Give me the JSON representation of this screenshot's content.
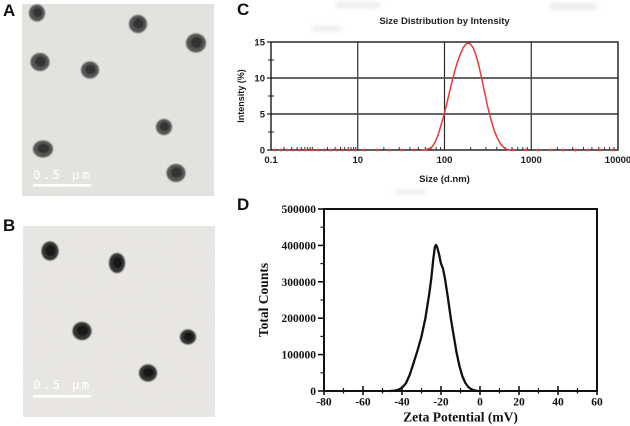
{
  "panels": {
    "a": {
      "label": "A",
      "scale_bar_text": "0.5 μm",
      "bg_color": "#e7e6e2",
      "particle_color": "#454545",
      "core_color": "#262626",
      "particles": [
        [
          15,
          9,
          8,
          8.5
        ],
        [
          116,
          20,
          9,
          9
        ],
        [
          174,
          39,
          10,
          9.5
        ],
        [
          18,
          58,
          9.5,
          9
        ],
        [
          68,
          66,
          9,
          8.5
        ],
        [
          142,
          123,
          8,
          8
        ],
        [
          21,
          145,
          10,
          8.5
        ],
        [
          154,
          169,
          9.5,
          9
        ]
      ]
    },
    "b": {
      "label": "B",
      "scale_bar_text": "0.5 μm",
      "bg_color": "#eceae7",
      "particle_color": "#202020",
      "core_color": "#0a0a0a",
      "particles": [
        [
          27,
          25,
          8.5,
          9.5
        ],
        [
          94,
          37,
          8,
          10
        ],
        [
          59,
          105,
          9.5,
          9
        ],
        [
          165,
          111,
          8,
          7.5
        ],
        [
          125,
          147,
          9,
          8.5
        ]
      ]
    },
    "c": {
      "label": "C"
    },
    "d": {
      "label": "D"
    }
  },
  "chart_data": [
    {
      "id": "size_distribution",
      "type": "line",
      "title": "Size Distribution by Intensity",
      "xlabel": "Size (d.nm)",
      "ylabel": "Intensity (%)",
      "x_scale": "log",
      "x_tick_values": [
        0.1,
        10,
        100,
        1000,
        10000
      ],
      "x_tick_labels": [
        "0.1",
        "10",
        "100",
        "1000",
        "10000"
      ],
      "grid_x_values": [
        10,
        100,
        1000
      ],
      "grid_y_values": [
        5,
        10
      ],
      "ylim": [
        0,
        15
      ],
      "y_ticks": [
        0,
        5,
        10,
        15
      ],
      "y_minor_ticks": [
        2.5,
        7.5,
        12.5
      ],
      "line_color": "#e43b3b",
      "peak": {
        "x_nm": 180,
        "intensity_pct": 14.8
      },
      "series": [
        {
          "name": "Intensity",
          "points": [
            [
              55,
              0
            ],
            [
              60,
              0.05
            ],
            [
              66,
              0.15
            ],
            [
              72,
              0.45
            ],
            [
              78,
              1.1
            ],
            [
              84,
              2.0
            ],
            [
              90,
              3.2
            ],
            [
              96,
              4.4
            ],
            [
              100,
              5.2
            ],
            [
              106,
              6.4
            ],
            [
              113,
              7.8
            ],
            [
              121,
              9.3
            ],
            [
              130,
              10.8
            ],
            [
              140,
              12.1
            ],
            [
              152,
              13.3
            ],
            [
              164,
              14.2
            ],
            [
              176,
              14.7
            ],
            [
              188,
              14.85
            ],
            [
              200,
              14.7
            ],
            [
              214,
              14.2
            ],
            [
              230,
              13.2
            ],
            [
              248,
              11.8
            ],
            [
              268,
              10.0
            ],
            [
              290,
              8.0
            ],
            [
              315,
              6.0
            ],
            [
              342,
              4.3
            ],
            [
              372,
              2.8
            ],
            [
              405,
              1.7
            ],
            [
              440,
              0.9
            ],
            [
              478,
              0.4
            ],
            [
              515,
              0.12
            ],
            [
              545,
              0.03
            ],
            [
              570,
              0
            ]
          ]
        }
      ],
      "baseline_dot_ranges": [
        [
          0.12,
          50
        ],
        [
          620,
          9300
        ]
      ]
    },
    {
      "id": "zeta_potential",
      "type": "line",
      "title": "",
      "xlabel": "Zeta Potential (mV)",
      "ylabel": "Total Counts",
      "xlim": [
        -80,
        60
      ],
      "x_ticks": [
        -80,
        -60,
        -40,
        -20,
        0,
        20,
        40,
        60
      ],
      "x_tick_labels": [
        "-80",
        "-60",
        "-40",
        "-20",
        "0",
        "20",
        "40",
        "60"
      ],
      "ylim": [
        0,
        500000
      ],
      "y_ticks": [
        0,
        100000,
        200000,
        300000,
        400000,
        500000
      ],
      "y_tick_labels": [
        "0",
        "100000",
        "200000",
        "300000",
        "400000",
        "500000"
      ],
      "line_color": "#111111",
      "peak": {
        "x_mv": -23,
        "counts": 400000
      },
      "series": [
        {
          "name": "Total Counts",
          "points": [
            [
              -46,
              0
            ],
            [
              -44,
              800
            ],
            [
              -42,
              3000
            ],
            [
              -40,
              9000
            ],
            [
              -38,
              21000
            ],
            [
              -36,
              45000
            ],
            [
              -34,
              78000
            ],
            [
              -32,
              112000
            ],
            [
              -30,
              150000
            ],
            [
              -28,
              200000
            ],
            [
              -26,
              268000
            ],
            [
              -25,
              310000
            ],
            [
              -24,
              360000
            ],
            [
              -23.2,
              395000
            ],
            [
              -22.6,
              401000
            ],
            [
              -22,
              396000
            ],
            [
              -21,
              375000
            ],
            [
              -20,
              350000
            ],
            [
              -19,
              337000
            ],
            [
              -18,
              310000
            ],
            [
              -16.5,
              258000
            ],
            [
              -15,
              200000
            ],
            [
              -13.5,
              152000
            ],
            [
              -12,
              105000
            ],
            [
              -10.5,
              68000
            ],
            [
              -9,
              40000
            ],
            [
              -7.5,
              22000
            ],
            [
              -6,
              11000
            ],
            [
              -4.5,
              5000
            ],
            [
              -3,
              1800
            ],
            [
              -1.5,
              400
            ],
            [
              0,
              0
            ]
          ]
        }
      ]
    }
  ]
}
